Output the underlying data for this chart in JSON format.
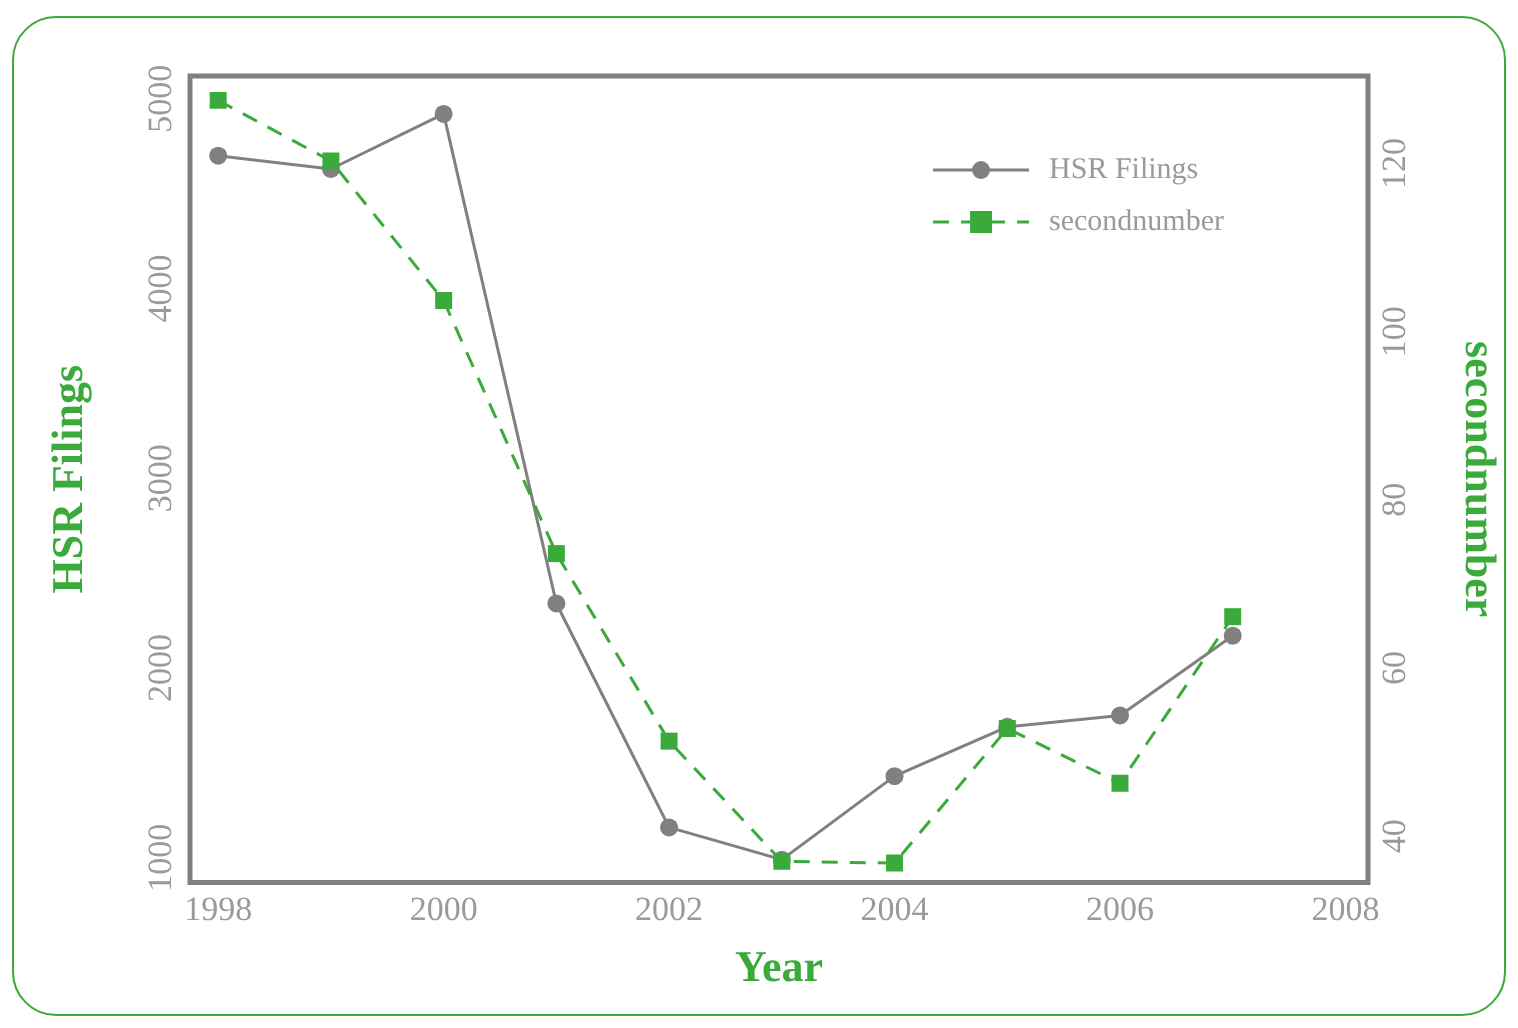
{
  "chart_data": {
    "type": "line",
    "xlabel": "Year",
    "ylabel": "HSR Filings",
    "y2label": "secondnumber",
    "x": [
      1998,
      1999,
      2000,
      2001,
      2002,
      2003,
      2004,
      2005,
      2006,
      2007
    ],
    "series": [
      {
        "name": "HSR Filings",
        "color": "#808080",
        "marker": "circle",
        "line_style": "solid",
        "values": [
          4700,
          4630,
          4920,
          2340,
          1160,
          990,
          1430,
          1690,
          1750,
          2170
        ]
      },
      {
        "name": "secondnumber",
        "color": "#3aaa3a",
        "marker": "square",
        "line_style": "dashed",
        "axis": "y2",
        "values": [
          127.5,
          120.3,
          103.7,
          73.6,
          51.3,
          37,
          36.8,
          52.8,
          46.3,
          66.1
        ]
      }
    ],
    "xlim": [
      1997.75,
      2008.2
    ],
    "xticks": [
      1998,
      2000,
      2002,
      2004,
      2006,
      2008
    ],
    "ylim": [
      870,
      5120
    ],
    "yticks": [
      1000,
      2000,
      3000,
      4000,
      5000
    ],
    "y2lim": [
      34.5,
      130.4
    ],
    "y2ticks": [
      40,
      60,
      80,
      100,
      120
    ],
    "grid": false,
    "legend": "top right"
  }
}
